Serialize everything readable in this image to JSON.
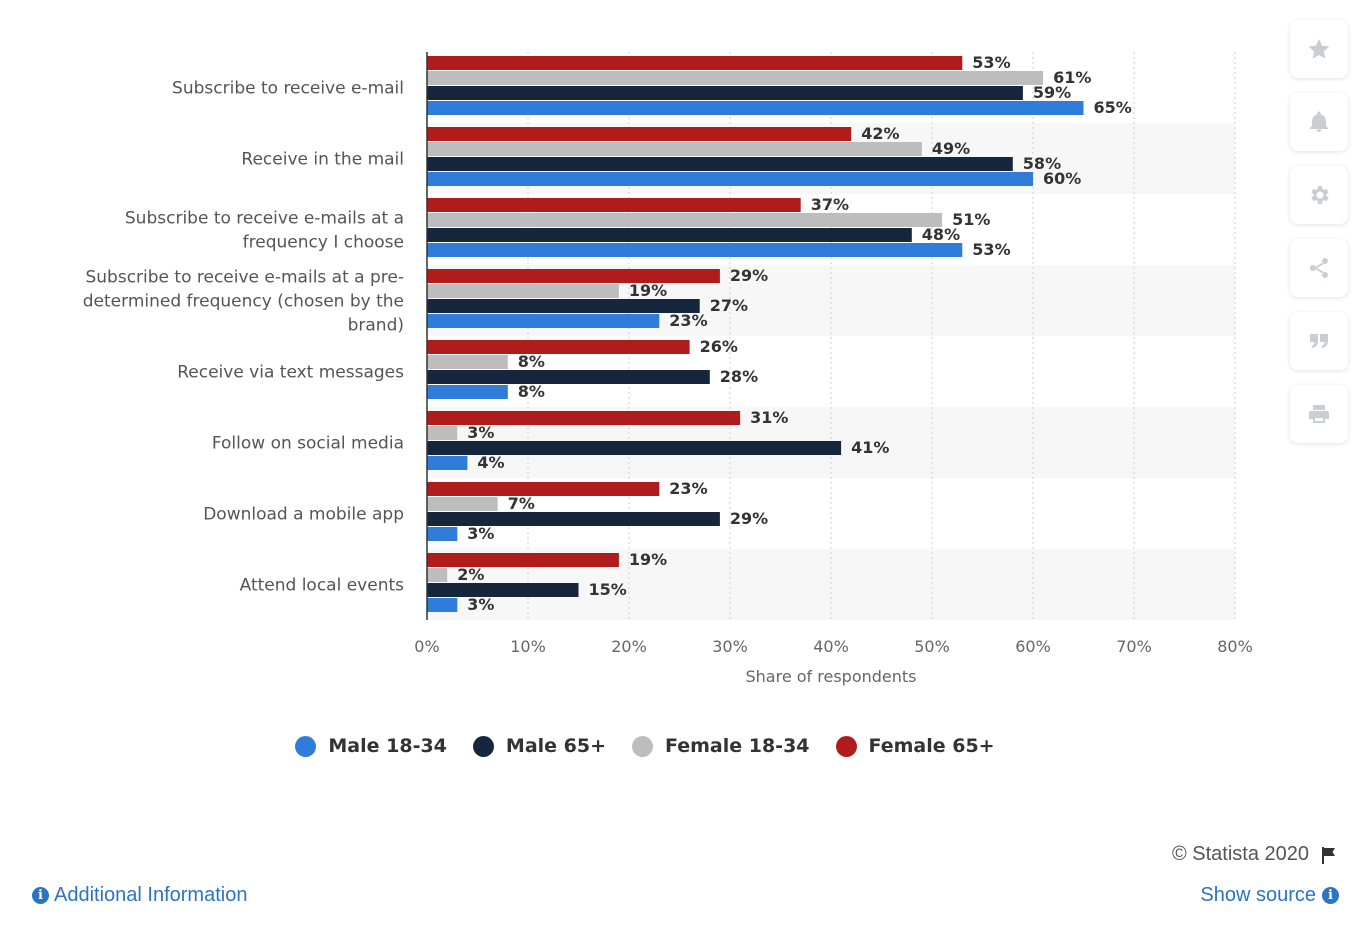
{
  "chart_data": {
    "type": "bar",
    "orientation": "horizontal",
    "categories": [
      "Subscribe to receive e-mail",
      "Receive in the mail",
      "Subscribe to receive e-mails at a frequency I choose",
      "Subscribe to receive e-mails at a pre-determined frequency (chosen by the brand)",
      "Receive via text messages",
      "Follow on social media",
      "Download a mobile app",
      "Attend local events"
    ],
    "category_lines": [
      [
        "Subscribe to receive e-mail"
      ],
      [
        "Receive in the mail"
      ],
      [
        "Subscribe to receive e-mails at a",
        "frequency I choose"
      ],
      [
        "Subscribe to receive e-mails at a pre-",
        "determined frequency (chosen by the",
        "brand)"
      ],
      [
        "Receive via text messages"
      ],
      [
        "Follow on social media"
      ],
      [
        "Download a mobile app"
      ],
      [
        "Attend local events"
      ]
    ],
    "series": [
      {
        "name": "Female 65+",
        "color": "#b01c1c",
        "values": [
          53,
          42,
          37,
          29,
          26,
          31,
          23,
          19
        ]
      },
      {
        "name": "Female 18-34",
        "color": "#bdbdbd",
        "values": [
          61,
          49,
          51,
          19,
          8,
          3,
          7,
          2
        ]
      },
      {
        "name": "Male 65+",
        "color": "#15263d",
        "values": [
          59,
          58,
          48,
          27,
          28,
          41,
          29,
          15
        ]
      },
      {
        "name": "Male 18-34",
        "color": "#2f7cdb",
        "values": [
          65,
          60,
          53,
          23,
          8,
          4,
          3,
          3
        ]
      }
    ],
    "xlabel": "Share of respondents",
    "xlim": [
      0,
      80
    ],
    "xticks": [
      "0%",
      "10%",
      "20%",
      "30%",
      "40%",
      "50%",
      "60%",
      "70%",
      "80%"
    ],
    "value_suffix": "%",
    "grid": true,
    "legend_position": "bottom-center"
  },
  "legend": [
    {
      "label": "Male 18-34",
      "color": "#2f7cdb"
    },
    {
      "label": "Male 65+",
      "color": "#15263d"
    },
    {
      "label": "Female 18-34",
      "color": "#bdbdbd"
    },
    {
      "label": "Female 65+",
      "color": "#b01c1c"
    }
  ],
  "toolbar": [
    "star-icon",
    "bell-icon",
    "gear-icon",
    "share-icon",
    "quote-icon",
    "print-icon"
  ],
  "footer": {
    "copyright": "© Statista 2020",
    "additional_info": "Additional Information",
    "show_source": "Show source"
  }
}
